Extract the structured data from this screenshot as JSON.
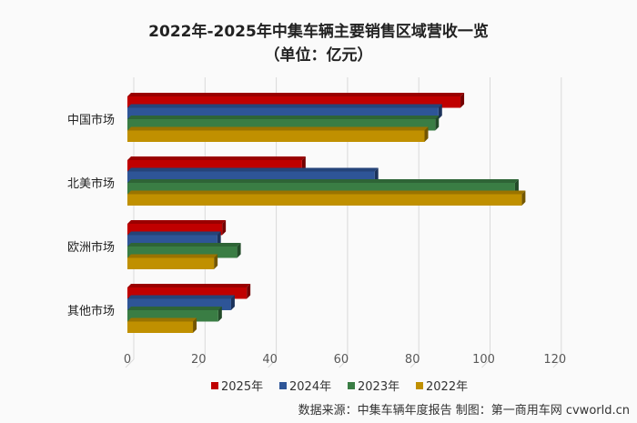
{
  "chart_data": {
    "type": "bar",
    "orientation": "horizontal",
    "style": "3d-clustered",
    "title": "2022年-2025年中集车辆主要销售区域营收一览",
    "subtitle": "（单位：亿元）",
    "categories": [
      "中国市场",
      "北美市场",
      "欧洲市场",
      "其他市场"
    ],
    "series": [
      {
        "name": "2025年",
        "color": "#c00000",
        "values": [
          93.5,
          49.0,
          26.6,
          33.5
        ]
      },
      {
        "name": "2024年",
        "color": "#2e5597",
        "values": [
          87.3,
          69.4,
          25.2,
          29.1
        ]
      },
      {
        "name": "2023年",
        "color": "#3a7d44",
        "values": [
          86.4,
          108.8,
          30.8,
          25.5
        ]
      },
      {
        "name": "2022年",
        "color": "#c09000",
        "values": [
          83.4,
          110.7,
          24.3,
          18.4
        ]
      }
    ],
    "xlim": [
      0,
      120
    ],
    "xticks": [
      "0",
      "20",
      "40",
      "60",
      "80",
      "100",
      "120"
    ],
    "grid": true,
    "legend": "bottom",
    "source": "数据来源：中集车辆年度报告 制图：第一商用车网 cvworld.cn"
  }
}
